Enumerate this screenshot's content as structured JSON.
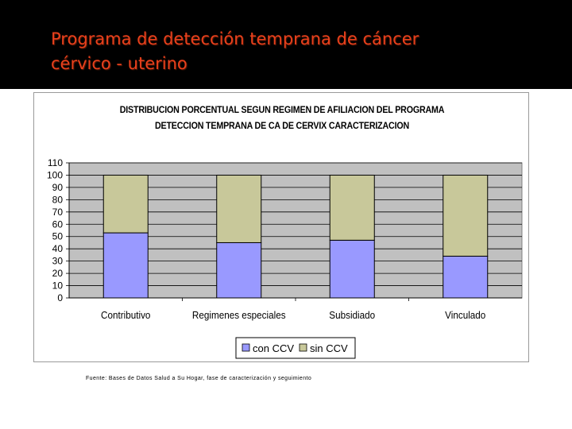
{
  "slide": {
    "title_line1": "Programa de detección temprana de cáncer",
    "title_line2": "cérvico - uterino",
    "source": "Fuente:  Bases de Datos Salud a Su Hogar, fase de caracterización y seguimiento"
  },
  "chart_data": {
    "type": "bar",
    "stacked": true,
    "title_line1": "DISTRIBUCION PORCENTUAL SEGUN REGIMEN DE AFILIACION DEL PROGRAMA",
    "title_line2": "DETECCION TEMPRANA DE CA DE CERVIX CARACTERIZACION",
    "categories": [
      "Contributivo",
      "Regimenes especiales",
      "Subsidiado",
      "Vinculado"
    ],
    "series": [
      {
        "name": "con CCV",
        "values": [
          53,
          45,
          47,
          34
        ],
        "color": "#9999ff"
      },
      {
        "name": "sin CCV",
        "values": [
          47,
          55,
          53,
          66
        ],
        "color": "#c8c89a"
      }
    ],
    "ylim": [
      0,
      110
    ],
    "yticks": [
      0,
      10,
      20,
      30,
      40,
      50,
      60,
      70,
      80,
      90,
      100,
      110
    ],
    "grid": true,
    "legend": "bottom",
    "plot_background": "#c0c0c0"
  }
}
